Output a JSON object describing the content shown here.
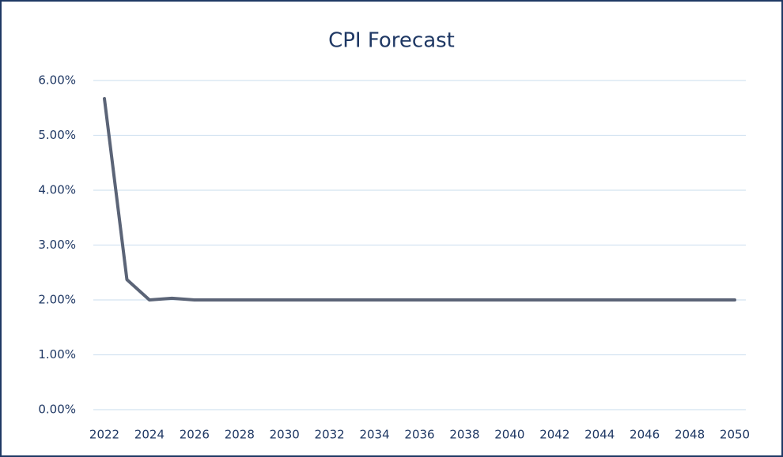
{
  "chart_data": {
    "type": "line",
    "title": "CPI Forecast",
    "x": [
      2022,
      2023,
      2024,
      2025,
      2026,
      2027,
      2028,
      2029,
      2030,
      2031,
      2032,
      2033,
      2034,
      2035,
      2036,
      2037,
      2038,
      2039,
      2040,
      2041,
      2042,
      2043,
      2044,
      2045,
      2046,
      2047,
      2048,
      2049,
      2050
    ],
    "series": [
      {
        "color": "#5b6477",
        "values": [
          5.67,
          2.37,
          2.0,
          2.03,
          2.0,
          2.0,
          2.0,
          2.0,
          2.0,
          2.0,
          2.0,
          2.0,
          2.0,
          2.0,
          2.0,
          2.0,
          2.0,
          2.0,
          2.0,
          2.0,
          2.0,
          2.0,
          2.0,
          2.0,
          2.0,
          2.0,
          2.0,
          2.0,
          2.0
        ]
      }
    ],
    "xlim": [
      2022,
      2050
    ],
    "xticks": [
      2022,
      2024,
      2026,
      2028,
      2030,
      2032,
      2034,
      2036,
      2038,
      2040,
      2042,
      2044,
      2046,
      2048,
      2050
    ],
    "ylim": [
      0,
      6
    ],
    "yticks": [
      {
        "value": 0,
        "label": "0.00%"
      },
      {
        "value": 1,
        "label": "1.00%"
      },
      {
        "value": 2,
        "label": "2.00%"
      },
      {
        "value": 3,
        "label": "3.00%"
      },
      {
        "value": 4,
        "label": "4.00%"
      },
      {
        "value": 5,
        "label": "5.00%"
      },
      {
        "value": 6,
        "label": "6.00%"
      }
    ],
    "grid": true
  }
}
